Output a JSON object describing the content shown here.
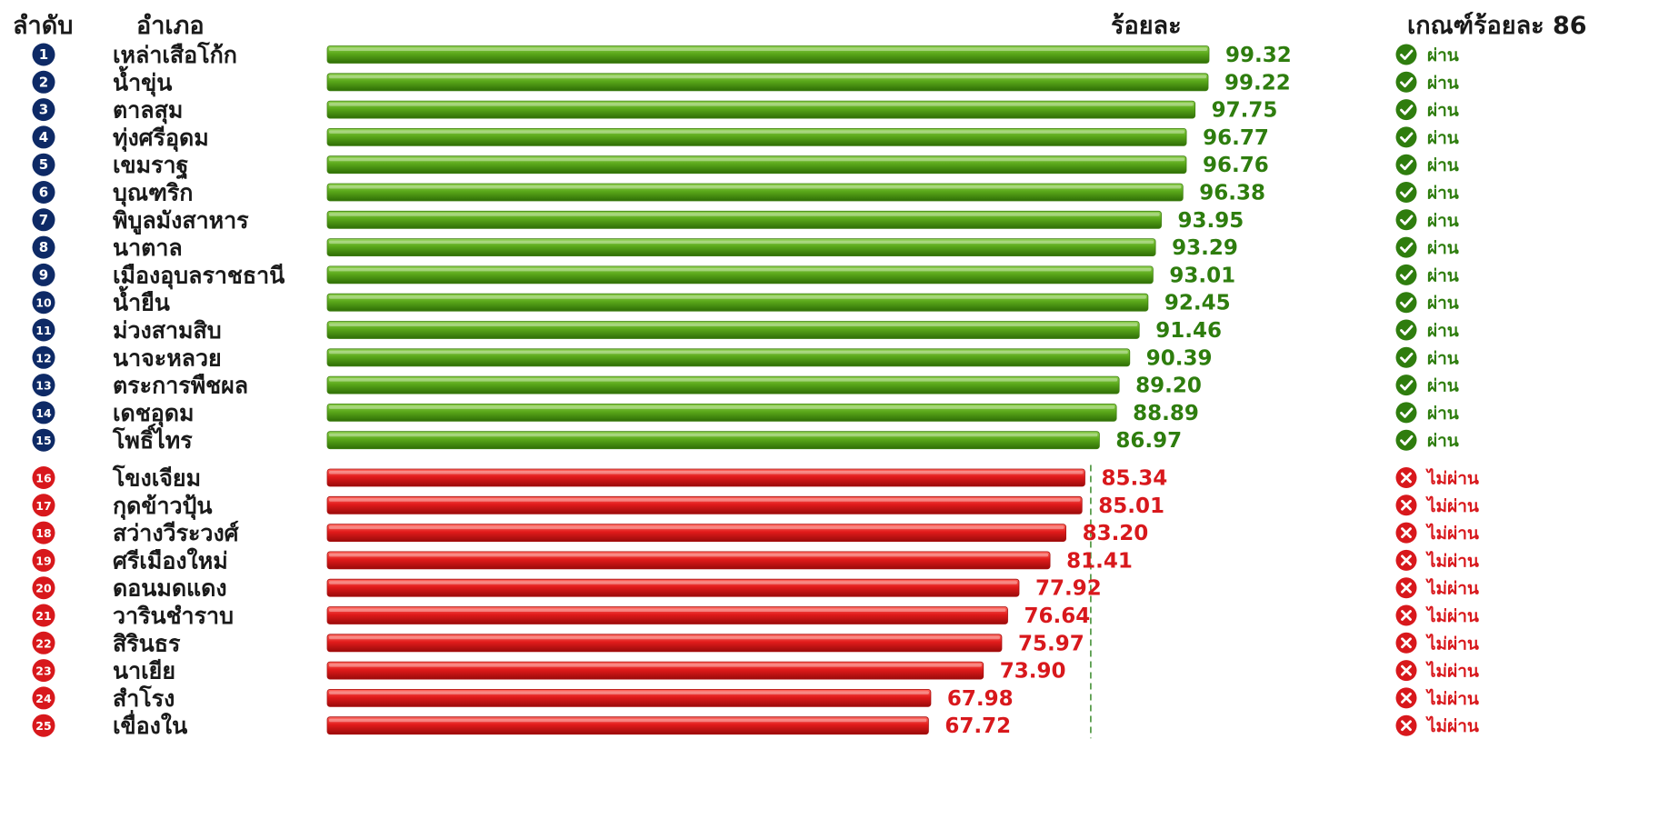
{
  "headers": {
    "rank": "ลำดับ",
    "district": "อำเภอ",
    "percent": "ร้อยละ",
    "criterion": "เกณฑ์ร้อยละ 86"
  },
  "chart_data": {
    "type": "bar",
    "orientation": "horizontal",
    "threshold": 86,
    "xlim": [
      0,
      100
    ],
    "colors": {
      "pass": "#4a9a10",
      "fail": "#d8181c",
      "pass_text": "#2e7d0e",
      "fail_text": "#d8181c",
      "rank_badge": "#0e2a66"
    },
    "rows": [
      {
        "rank": "1",
        "name": "เหล่าเสือโก้ก",
        "value": 99.32,
        "label": "99.32",
        "status": "pass",
        "status_label": "ผ่าน"
      },
      {
        "rank": "2",
        "name": "น้ำขุ่น",
        "value": 99.22,
        "label": "99.22",
        "status": "pass",
        "status_label": "ผ่าน"
      },
      {
        "rank": "3",
        "name": "ตาลสุม",
        "value": 97.75,
        "label": "97.75",
        "status": "pass",
        "status_label": "ผ่าน"
      },
      {
        "rank": "4",
        "name": "ทุ่งศรีอุดม",
        "value": 96.77,
        "label": "96.77",
        "status": "pass",
        "status_label": "ผ่าน"
      },
      {
        "rank": "5",
        "name": "เขมราฐ",
        "value": 96.76,
        "label": "96.76",
        "status": "pass",
        "status_label": "ผ่าน"
      },
      {
        "rank": "6",
        "name": "บุณฑริก",
        "value": 96.38,
        "label": "96.38",
        "status": "pass",
        "status_label": "ผ่าน"
      },
      {
        "rank": "7",
        "name": "พิบูลมังสาหาร",
        "value": 93.95,
        "label": "93.95",
        "status": "pass",
        "status_label": "ผ่าน"
      },
      {
        "rank": "8",
        "name": "นาตาล",
        "value": 93.29,
        "label": "93.29",
        "status": "pass",
        "status_label": "ผ่าน"
      },
      {
        "rank": "9",
        "name": "เมืองอุบลราชธานี",
        "value": 93.01,
        "label": "93.01",
        "status": "pass",
        "status_label": "ผ่าน"
      },
      {
        "rank": "10",
        "name": "น้ำยืน",
        "value": 92.45,
        "label": "92.45",
        "status": "pass",
        "status_label": "ผ่าน"
      },
      {
        "rank": "11",
        "name": "ม่วงสามสิบ",
        "value": 91.46,
        "label": "91.46",
        "status": "pass",
        "status_label": "ผ่าน"
      },
      {
        "rank": "12",
        "name": "นาจะหลวย",
        "value": 90.39,
        "label": "90.39",
        "status": "pass",
        "status_label": "ผ่าน"
      },
      {
        "rank": "13",
        "name": "ตระการพืชผล",
        "value": 89.2,
        "label": "89.20",
        "status": "pass",
        "status_label": "ผ่าน"
      },
      {
        "rank": "14",
        "name": "เดชอุดม",
        "value": 88.89,
        "label": "88.89",
        "status": "pass",
        "status_label": "ผ่าน"
      },
      {
        "rank": "15",
        "name": "โพธิ์ไทร",
        "value": 86.97,
        "label": "86.97",
        "status": "pass",
        "status_label": "ผ่าน"
      },
      {
        "rank": "16",
        "name": "โขงเจียม",
        "value": 85.34,
        "label": "85.34",
        "status": "fail",
        "status_label": "ไม่ผ่าน"
      },
      {
        "rank": "17",
        "name": "กุดข้าวปุ้น",
        "value": 85.01,
        "label": "85.01",
        "status": "fail",
        "status_label": "ไม่ผ่าน"
      },
      {
        "rank": "18",
        "name": "สว่างวีระวงศ์",
        "value": 83.2,
        "label": "83.20",
        "status": "fail",
        "status_label": "ไม่ผ่าน"
      },
      {
        "rank": "19",
        "name": "ศรีเมืองใหม่",
        "value": 81.41,
        "label": "81.41",
        "status": "fail",
        "status_label": "ไม่ผ่าน"
      },
      {
        "rank": "20",
        "name": "ดอนมดแดง",
        "value": 77.92,
        "label": "77.92",
        "status": "fail",
        "status_label": "ไม่ผ่าน"
      },
      {
        "rank": "21",
        "name": "วารินชำราบ",
        "value": 76.64,
        "label": "76.64",
        "status": "fail",
        "status_label": "ไม่ผ่าน"
      },
      {
        "rank": "22",
        "name": "สิรินธร",
        "value": 75.97,
        "label": "75.97",
        "status": "fail",
        "status_label": "ไม่ผ่าน"
      },
      {
        "rank": "23",
        "name": "นาเยีย",
        "value": 73.9,
        "label": "73.90",
        "status": "fail",
        "status_label": "ไม่ผ่าน"
      },
      {
        "rank": "24",
        "name": "สำโรง",
        "value": 67.98,
        "label": "67.98",
        "status": "fail",
        "status_label": "ไม่ผ่าน"
      },
      {
        "rank": "25",
        "name": "เขื่องใน",
        "value": 67.72,
        "label": "67.72",
        "status": "fail",
        "status_label": "ไม่ผ่าน"
      }
    ]
  }
}
